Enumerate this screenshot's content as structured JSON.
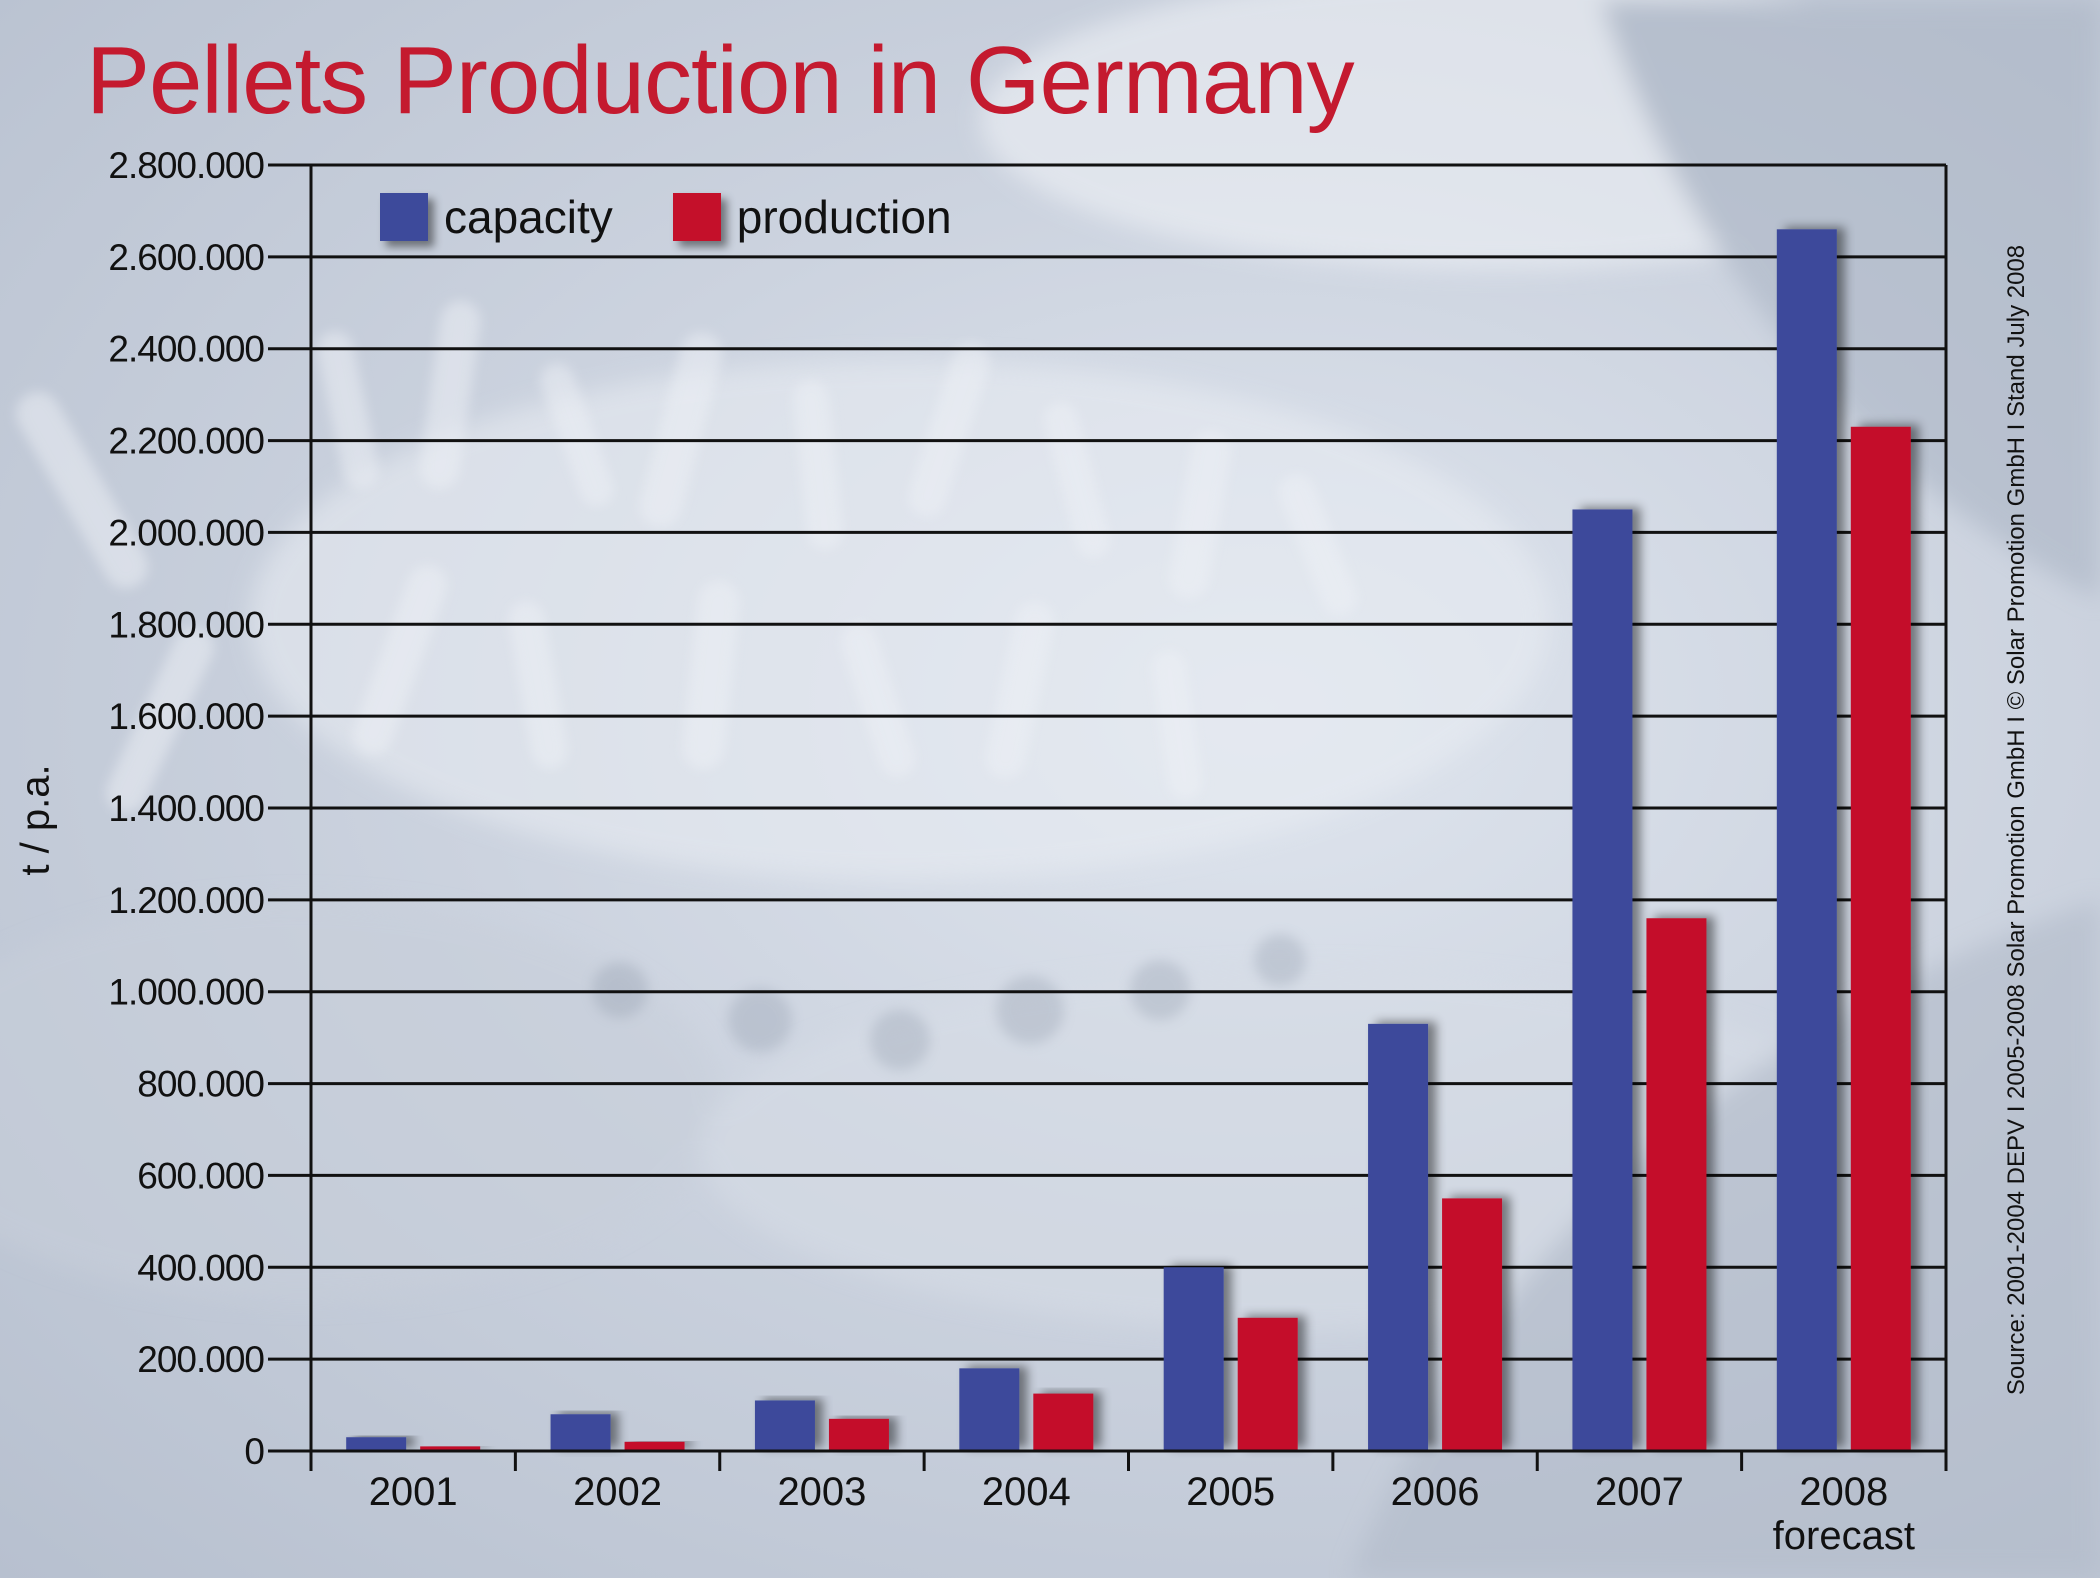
{
  "colors": {
    "capacity": "#3d4a9b",
    "production": "#c4102a",
    "title": "#c41a2f",
    "grid": "#111111"
  },
  "chart_data": {
    "type": "bar",
    "title": "Pellets Production in Germany",
    "ylabel": "t / p.a.",
    "xlabel": "",
    "ylim": [
      0,
      2800000
    ],
    "yticks": [
      0,
      200000,
      400000,
      600000,
      800000,
      1000000,
      1200000,
      1400000,
      1600000,
      1800000,
      2000000,
      2200000,
      2400000,
      2600000,
      2800000
    ],
    "ytick_labels": [
      "0",
      "200.000",
      "400.000",
      "600.000",
      "800.000",
      "1.000.000",
      "1.200.000",
      "1.400.000",
      "1.600.000",
      "1.800.000",
      "2.000.000",
      "2.200.000",
      "2.400.000",
      "2.600.000",
      "2.800.000"
    ],
    "categories": [
      "2001",
      "2002",
      "2003",
      "2004",
      "2005",
      "2006",
      "2007",
      "2008"
    ],
    "category_sublabels": [
      "",
      "",
      "",
      "",
      "",
      "",
      "",
      "forecast"
    ],
    "series": [
      {
        "name": "capacity",
        "values": [
          30000,
          80000,
          110000,
          180000,
          400000,
          930000,
          2050000,
          2660000
        ]
      },
      {
        "name": "production",
        "values": [
          10000,
          20000,
          70000,
          125000,
          290000,
          550000,
          1160000,
          2230000
        ]
      }
    ],
    "grid": true,
    "legend_position": "top-left"
  },
  "source_note": "Source: 2001-2004 DEPV I 2005-2008 Solar Promotion GmbH I © Solar Promotion GmbH I Stand July 2008"
}
